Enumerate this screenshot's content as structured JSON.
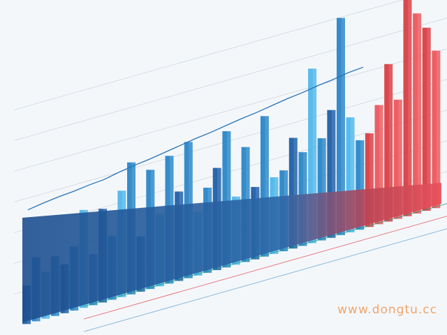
{
  "chart_data": {
    "type": "bar",
    "title": "",
    "xlabel": "",
    "ylabel": "",
    "grid": true,
    "legend": "none",
    "colors": {
      "blue_dark": "#1f5fa6",
      "blue_mid": "#2a86c8",
      "blue_light": "#4fb7ea",
      "red_mid": "#d8383f",
      "red_light": "#ea5258",
      "trend": "#2673b8",
      "floor_blue": "#1d4f8f",
      "floor_red": "#c93a45"
    },
    "series": [
      {
        "values": [
          18,
          30,
          22,
          28,
          23,
          30,
          46,
          24,
          44,
          30,
          50,
          62,
          26,
          56,
          34,
          60,
          42,
          64,
          30,
          40,
          48,
          64,
          32,
          54,
          34,
          66,
          36,
          38,
          52,
          44,
          82,
          48,
          60,
          102,
          54,
          42,
          44,
          56,
          74,
          56,
          108,
          94,
          86,
          74
        ]
      }
    ],
    "trend_line": [
      10,
      14,
      17,
      19,
      22,
      24,
      29,
      33,
      36,
      40,
      44,
      48,
      51,
      55,
      59,
      62,
      66,
      70,
      73,
      77,
      80,
      84,
      86
    ]
  },
  "watermark": "www.dongtu.cc"
}
